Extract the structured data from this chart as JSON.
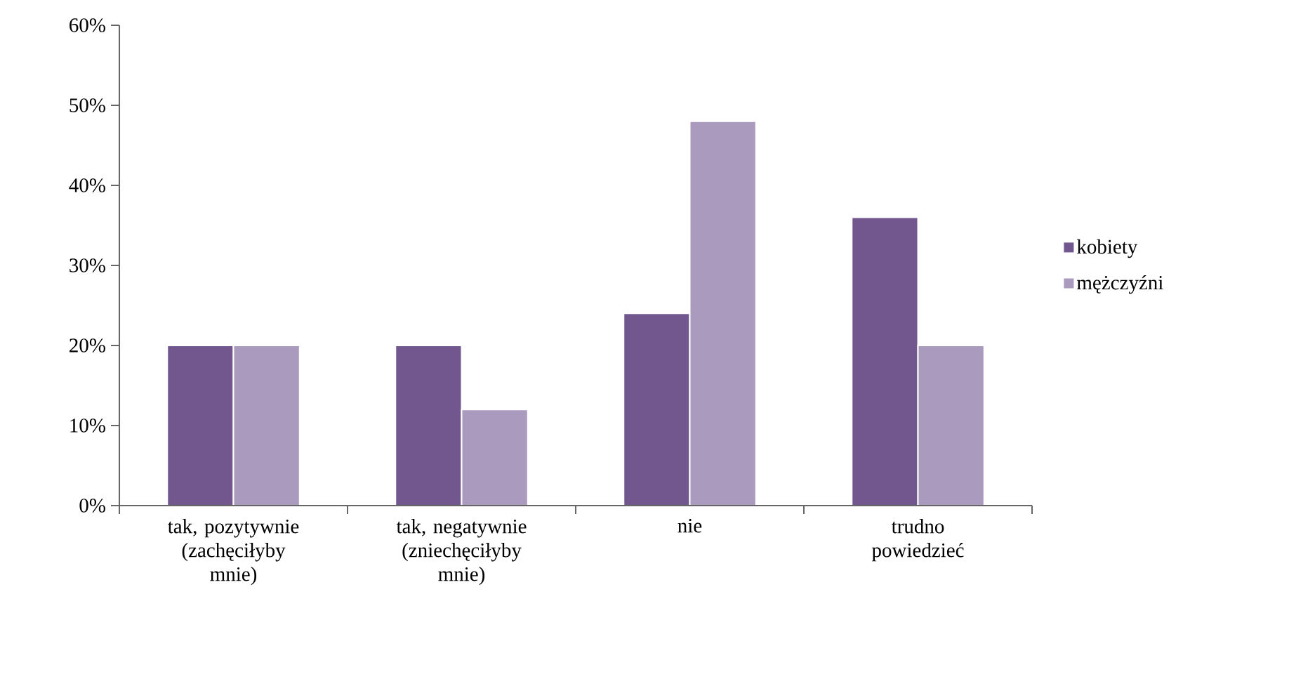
{
  "chart_data": {
    "type": "bar",
    "categories": [
      "tak, pozytywnie (zachęciłyby mnie)",
      "tak, negatywnie (zniechęciłyby mnie)",
      "nie",
      "trudno powiedzieć"
    ],
    "series": [
      {
        "name": "kobiety",
        "color": "#72578f",
        "values": [
          20,
          20,
          24,
          36
        ]
      },
      {
        "name": "mężczyźni",
        "color": "#a99abe",
        "values": [
          20,
          12,
          48,
          20
        ]
      }
    ],
    "ylim": [
      0,
      60
    ],
    "yticks": [
      {
        "value": 0,
        "label": "0%"
      },
      {
        "value": 10,
        "label": "10%"
      },
      {
        "value": 20,
        "label": "20%"
      },
      {
        "value": 30,
        "label": "30%"
      },
      {
        "value": 40,
        "label": "40%"
      },
      {
        "value": 50,
        "label": "50%"
      },
      {
        "value": 60,
        "label": "60%"
      }
    ],
    "legend": "right"
  }
}
